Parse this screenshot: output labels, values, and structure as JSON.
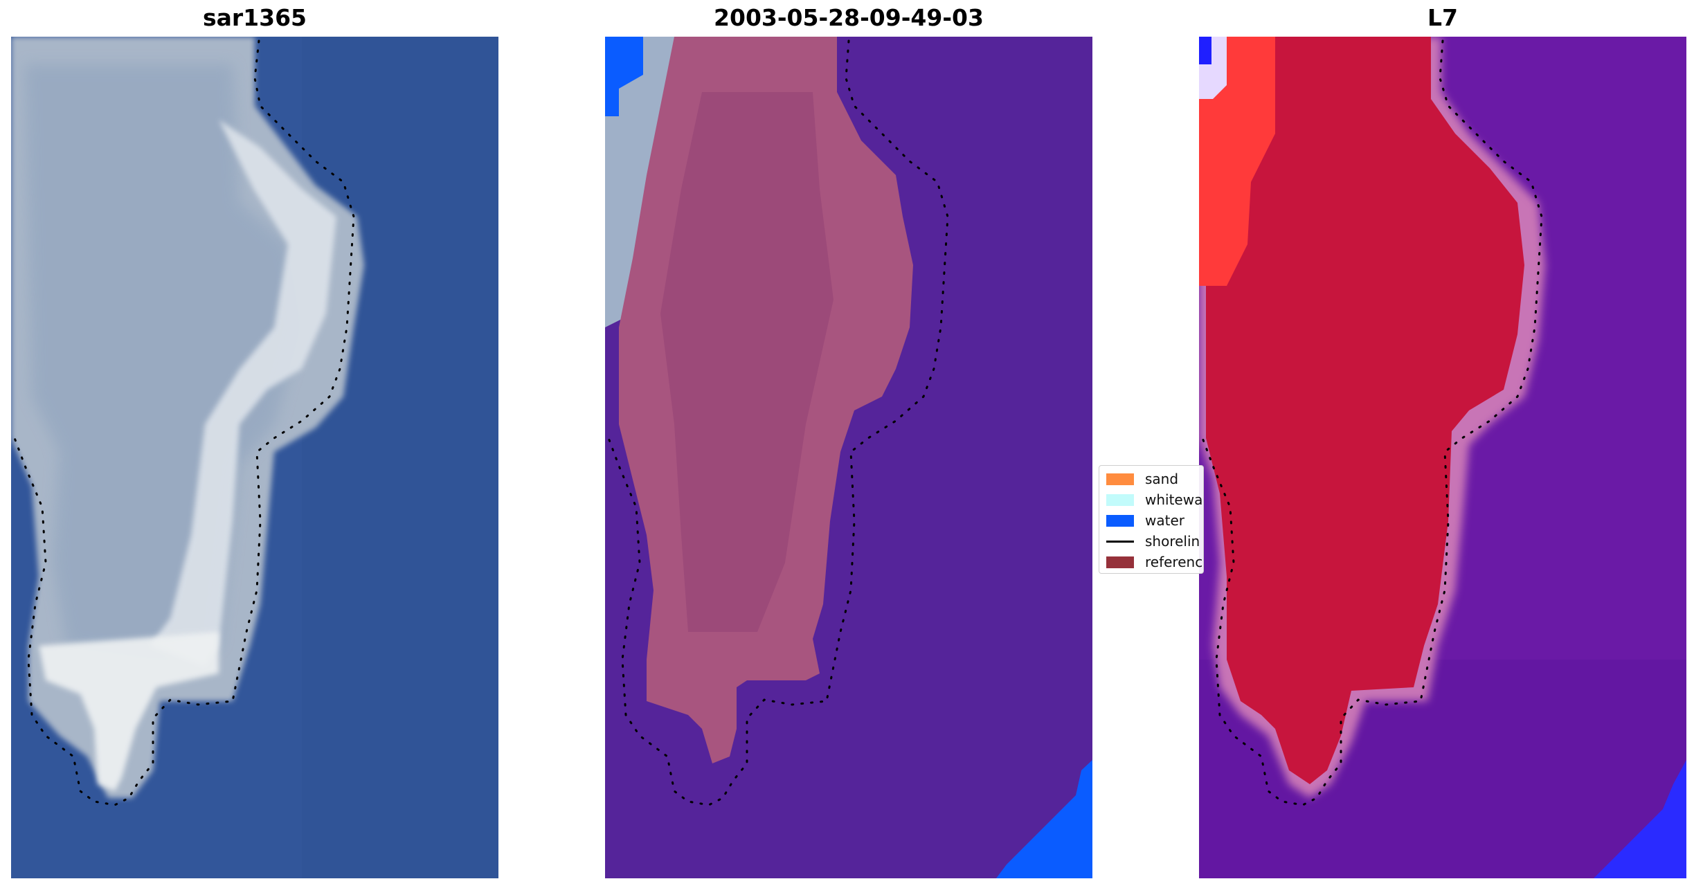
{
  "panels": [
    {
      "title": "sar1365",
      "kind": "rgb"
    },
    {
      "title": "2003-05-28-09-49-03",
      "kind": "classified"
    },
    {
      "title": "L7",
      "kind": "index"
    }
  ],
  "legend": {
    "items": [
      {
        "label": "sand",
        "color": "#ff8c3f",
        "type": "patch"
      },
      {
        "label": "whitewa",
        "color": "#c2fbfb",
        "type": "patch"
      },
      {
        "label": "water",
        "color": "#0a5cff",
        "type": "patch"
      },
      {
        "label": "shorelin",
        "color": "#000000",
        "type": "line"
      },
      {
        "label": "referenc",
        "color": "#96313a",
        "type": "patch"
      }
    ]
  },
  "colors": {
    "ocean_rgb": "#32569a",
    "island_rgb": "#a7b4c6",
    "island_bright": "#eef1f2",
    "classified_water": "#55249a",
    "classified_island": "#a8557f",
    "water_corner": "#0a5cff",
    "index_water": "#6a1aa6",
    "index_land": "#c7153d",
    "index_edge": "#c874b6",
    "index_blue": "#2a2bff"
  }
}
